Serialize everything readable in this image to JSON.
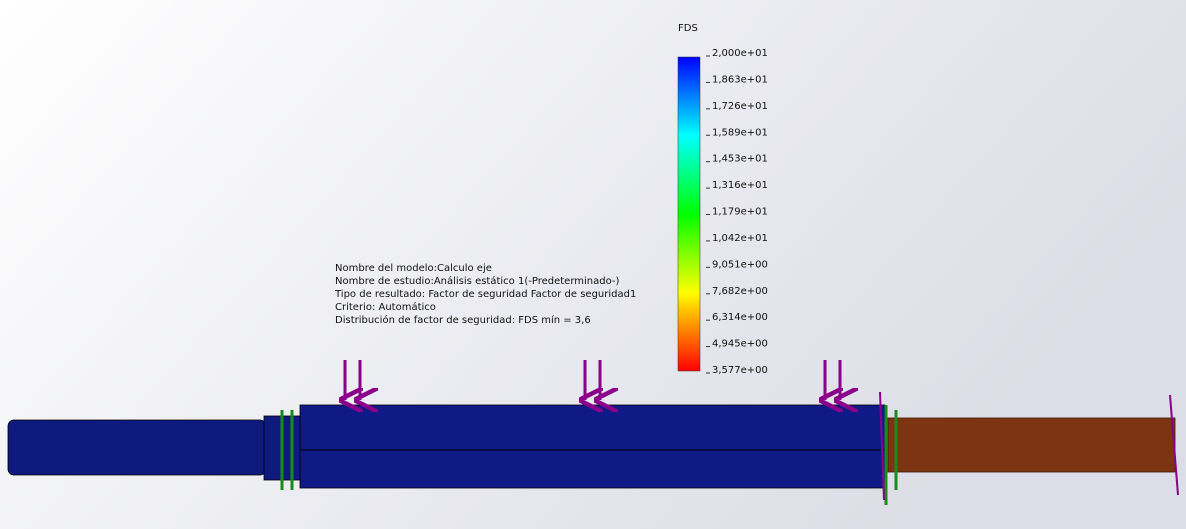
{
  "legend": {
    "title": "FDS",
    "labels": [
      "2,000e+01",
      "1,863e+01",
      "1,726e+01",
      "1,589e+01",
      "1,453e+01",
      "1,316e+01",
      "1,179e+01",
      "1,042e+01",
      "9,051e+00",
      "7,682e+00",
      "6,314e+00",
      "4,945e+00",
      "3,577e+00"
    ]
  },
  "info": {
    "lines": [
      "Nombre del modelo:Calculo eje",
      "Nombre de estudio:Análisis estático 1(-Predeterminado-)",
      "Tipo de resultado: Factor de seguridad Factor de seguridad1",
      "Criterio: Automático",
      "Distribución de factor de seguridad: FDS mín = 3,6"
    ]
  }
}
